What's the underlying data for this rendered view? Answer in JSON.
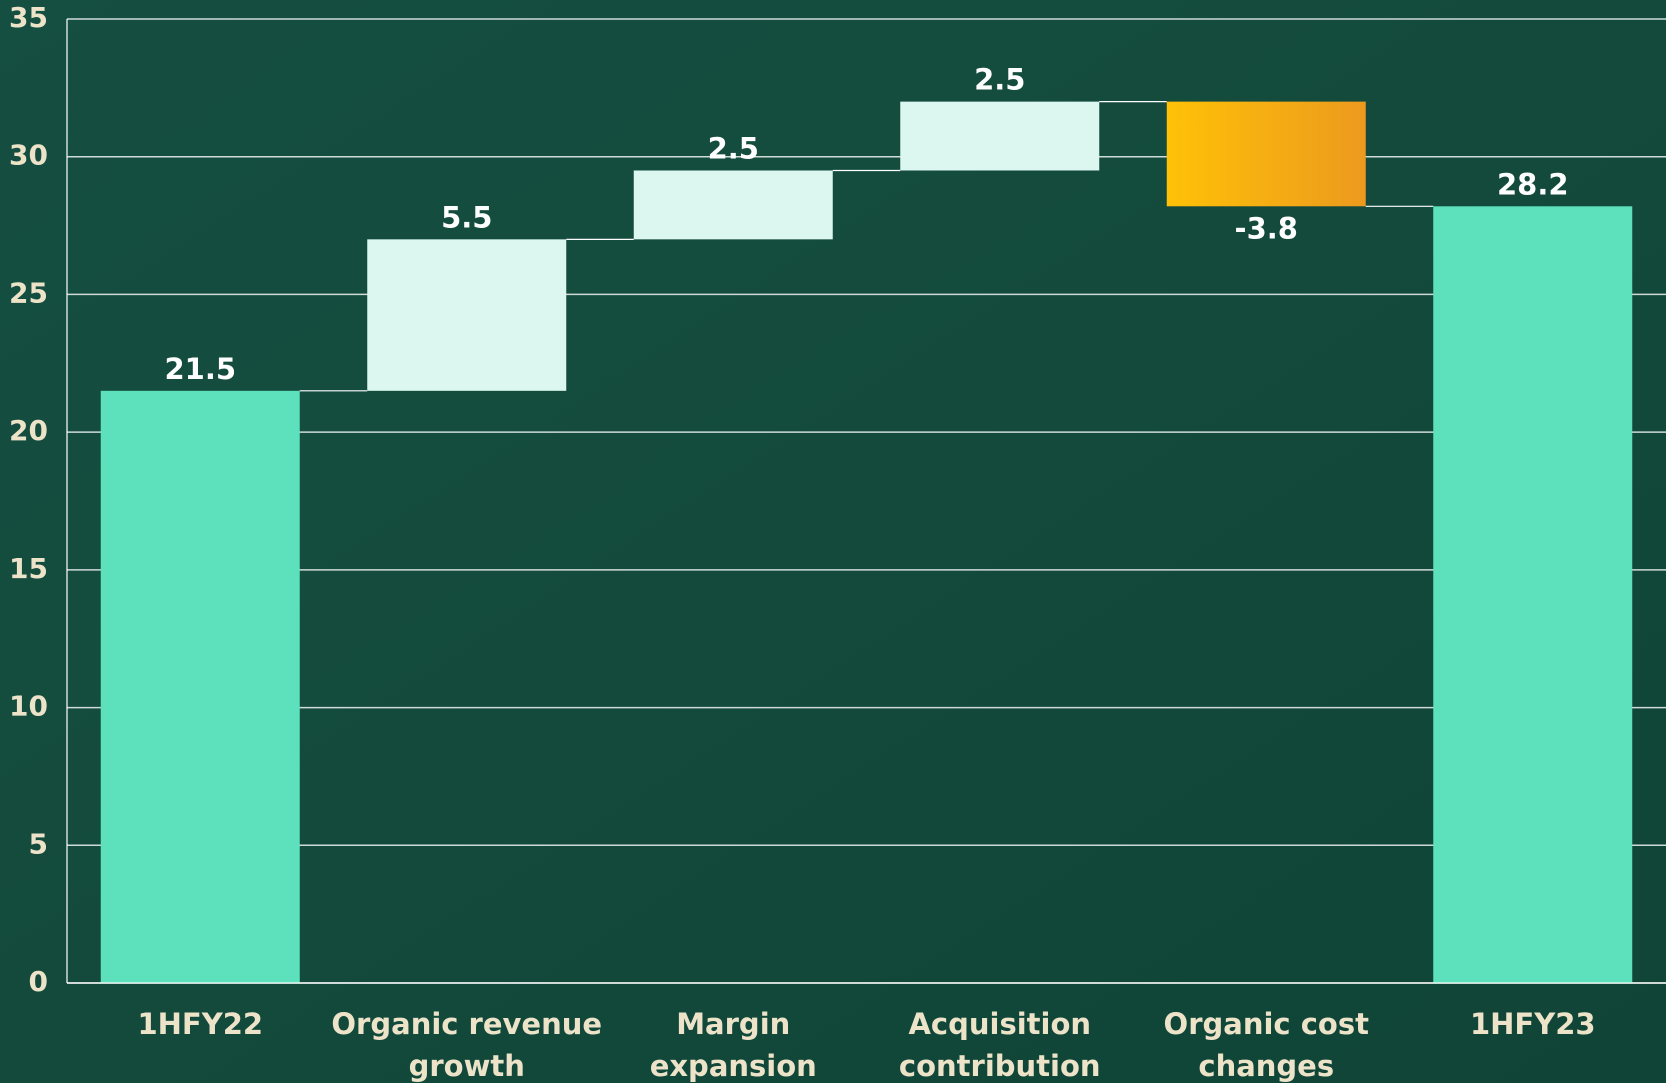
{
  "chart_data": {
    "type": "waterfall",
    "categories": [
      "1HFY22",
      "Organic revenue growth",
      "Margin expansion",
      "Acquisition contribution",
      "Organic cost changes",
      "1HFY23"
    ],
    "values": [
      21.5,
      5.5,
      2.5,
      2.5,
      -3.8,
      28.2
    ],
    "totals": [
      true,
      false,
      false,
      false,
      false,
      true
    ],
    "colors": {
      "total": "#5ce1bc",
      "increase": "#dcf7ef",
      "decrease": [
        "#ffc107",
        "#ec9a1e"
      ]
    },
    "ylim": [
      0,
      35
    ],
    "yticks": [
      0,
      5,
      10,
      15,
      20,
      25,
      30,
      35
    ],
    "grid": true,
    "connectors": true
  }
}
